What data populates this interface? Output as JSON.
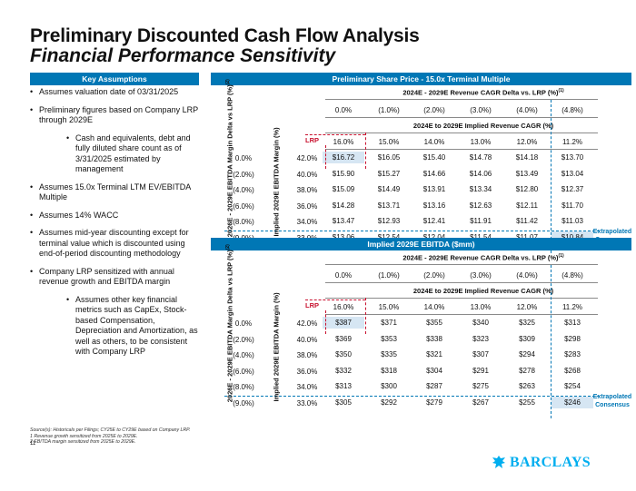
{
  "title": "Preliminary Discounted Cash Flow Analysis",
  "subtitle": "Financial Performance Sensitivity",
  "assumptions": {
    "header": "Key Assumptions",
    "bullets": [
      {
        "text": "Assumes valuation date of 03/31/2025",
        "level": 1
      },
      {
        "text": "Preliminary figures based on Company LRP through 2029E",
        "level": 1
      },
      {
        "text": "Cash and equivalents, debt and fully diluted share count as of 3/31/2025 estimated by management",
        "level": 2
      },
      {
        "text": "Assumes 15.0x Terminal LTM EV/EBITDA Multiple",
        "level": 1
      },
      {
        "text": "Assumes 14% WACC",
        "level": 1
      },
      {
        "text": "Assumes mid-year discounting except for terminal value which is discounted using end-of-period discounting methodology",
        "level": 1
      },
      {
        "text": "Company LRP sensitized with annual revenue growth and EBITDA margin",
        "level": 1
      },
      {
        "text": "Assumes other key financial metrics such as CapEx, Stock-based Compensation, Depreciation and Amortization, as well as others, to be consistent with Company LRP",
        "level": 2
      }
    ]
  },
  "share_price": {
    "header": "Preliminary Share Price - 15.0x Terminal Multiple",
    "col_delta_header": "2024E - 2029E Revenue CAGR Delta vs. LRP (%)",
    "col_delta_sup": "(1)",
    "col_deltas": [
      "0.0%",
      "(1.0%)",
      "(2.0%)",
      "(3.0%)",
      "(4.0%)",
      "(4.8%)"
    ],
    "col_cagr_header": "2024E to 2029E Implied Revenue CAGR (%)",
    "col_cagrs": [
      "16.0%",
      "15.0%",
      "14.0%",
      "13.0%",
      "12.0%",
      "11.2%"
    ],
    "lrp_label": "LRP",
    "row_delta_label": "2026E - 2029E EBITDA Margin Delta vs LRP (%)",
    "row_delta_sup": "(2)",
    "row_margin_label": "Implied 2029E EBITDA Margin (%)",
    "row_deltas": [
      "0.0%",
      "(2.0%)",
      "(4.0%)",
      "(6.0%)",
      "(8.0%)",
      "(9.0%)"
    ],
    "row_margins": [
      "42.0%",
      "40.0%",
      "38.0%",
      "36.0%",
      "34.0%",
      "33.0%"
    ],
    "values": [
      [
        "$16.72",
        "$16.05",
        "$15.40",
        "$14.78",
        "$14.18",
        "$13.70"
      ],
      [
        "$15.90",
        "$15.27",
        "$14.66",
        "$14.06",
        "$13.49",
        "$13.04"
      ],
      [
        "$15.09",
        "$14.49",
        "$13.91",
        "$13.34",
        "$12.80",
        "$12.37"
      ],
      [
        "$14.28",
        "$13.71",
        "$13.16",
        "$12.63",
        "$12.11",
        "$11.70"
      ],
      [
        "$13.47",
        "$12.93",
        "$12.41",
        "$11.91",
        "$11.42",
        "$11.03"
      ],
      [
        "$13.06",
        "$12.54",
        "$12.04",
        "$11.54",
        "$11.07",
        "$10.84"
      ]
    ],
    "extrapolated_label": "Extrapolated Consensus"
  },
  "ebitda": {
    "header": "Implied 2029E EBITDA ($mm)",
    "col_delta_header": "2024E - 2029E Revenue CAGR Delta vs. LRP (%)",
    "col_delta_sup": "(1)",
    "col_deltas": [
      "0.0%",
      "(1.0%)",
      "(2.0%)",
      "(3.0%)",
      "(4.0%)",
      "(4.8%)"
    ],
    "col_cagr_header": "2024E to 2029E Implied Revenue CAGR (%)",
    "col_cagrs": [
      "16.0%",
      "15.0%",
      "14.0%",
      "13.0%",
      "12.0%",
      "11.2%"
    ],
    "lrp_label": "LRP",
    "row_delta_label": "2026E - 2029E EBITDA Margin Delta vs LRP (%)",
    "row_delta_sup": "(2)",
    "row_margin_label": "Implied 2029E EBITDA Margin (%)",
    "row_deltas": [
      "0.0%",
      "(2.0%)",
      "(4.0%)",
      "(6.0%)",
      "(8.0%)",
      "(9.0%)"
    ],
    "row_margins": [
      "42.0%",
      "40.0%",
      "38.0%",
      "36.0%",
      "34.0%",
      "33.0%"
    ],
    "values": [
      [
        "$387",
        "$371",
        "$355",
        "$340",
        "$325",
        "$313"
      ],
      [
        "$369",
        "$353",
        "$338",
        "$323",
        "$309",
        "$298"
      ],
      [
        "$350",
        "$335",
        "$321",
        "$307",
        "$294",
        "$283"
      ],
      [
        "$332",
        "$318",
        "$304",
        "$291",
        "$278",
        "$268"
      ],
      [
        "$313",
        "$300",
        "$287",
        "$275",
        "$263",
        "$254"
      ],
      [
        "$305",
        "$292",
        "$279",
        "$267",
        "$255",
        "$246"
      ]
    ],
    "extrapolated_label": "Extrapolated Consensus"
  },
  "footnotes": {
    "source": "Source(s): Historicals per Filings; CY25E to CY29E based on Company LRP.",
    "note1": "1     Revenue growth sensitized from 2025E to 2029E.",
    "note2": "2     EBITDA margin sensitized from 2025E to 2029E."
  },
  "page_number": "11",
  "logo_text": "BARCLAYS",
  "colors": {
    "accent": "#0077b5",
    "lrp_red": "#c8102e",
    "highlight": "#d6e6f3",
    "logo": "#00aeef"
  }
}
